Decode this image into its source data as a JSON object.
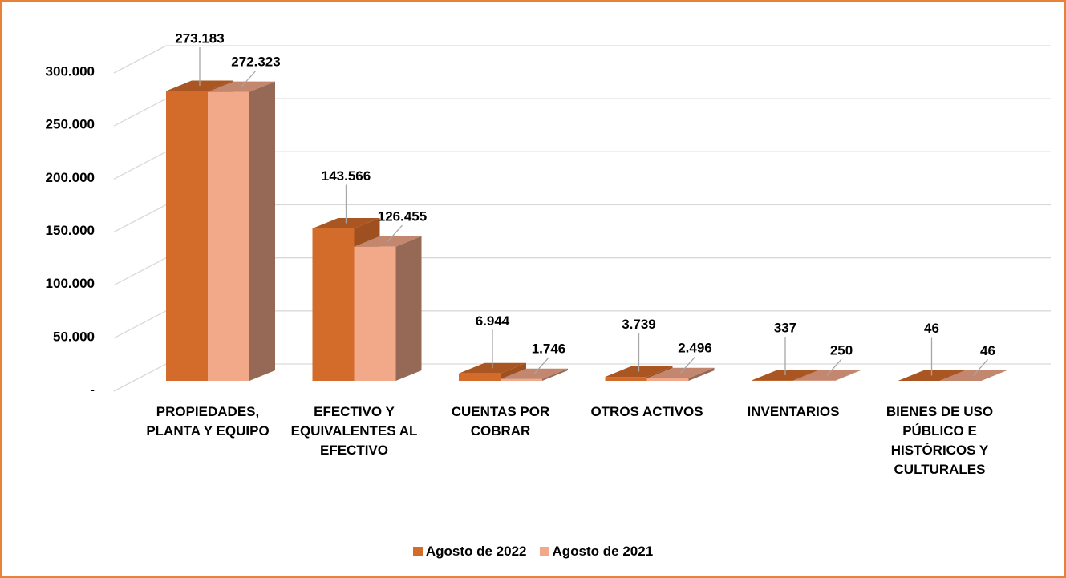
{
  "chart_data": {
    "type": "bar3d",
    "categories": [
      "PROPIEDADES, PLANTA Y EQUIPO",
      "EFECTIVO Y EQUIVALENTES AL EFECTIVO",
      "CUENTAS POR COBRAR",
      "OTROS ACTIVOS",
      "INVENTARIOS",
      "BIENES DE USO PÚBLICO E HISTÓRICOS Y CULTURALES"
    ],
    "series": [
      {
        "name": "Agosto de 2022",
        "color": "#d36b2a",
        "values": [
          273183,
          143566,
          6944,
          3739,
          337,
          46
        ],
        "value_labels": [
          "273.183",
          "143.566",
          "6.944",
          "3.739",
          "337",
          "46"
        ]
      },
      {
        "name": "Agosto de 2021",
        "color": "#f2a98a",
        "values": [
          272323,
          126455,
          1746,
          2496,
          250,
          46
        ],
        "value_labels": [
          "272.323",
          "126.455",
          "1.746",
          "2.496",
          "250",
          "46"
        ]
      }
    ],
    "ylim": [
      0,
      300000
    ],
    "yticks": [
      {
        "value": 0,
        "label": "-"
      },
      {
        "value": 50000,
        "label": "50.000"
      },
      {
        "value": 100000,
        "label": "100.000"
      },
      {
        "value": 150000,
        "label": "150.000"
      },
      {
        "value": 200000,
        "label": "200.000"
      },
      {
        "value": 250000,
        "label": "250.000"
      },
      {
        "value": 300000,
        "label": "300.000"
      }
    ],
    "grid": true,
    "legend": "bottom"
  }
}
